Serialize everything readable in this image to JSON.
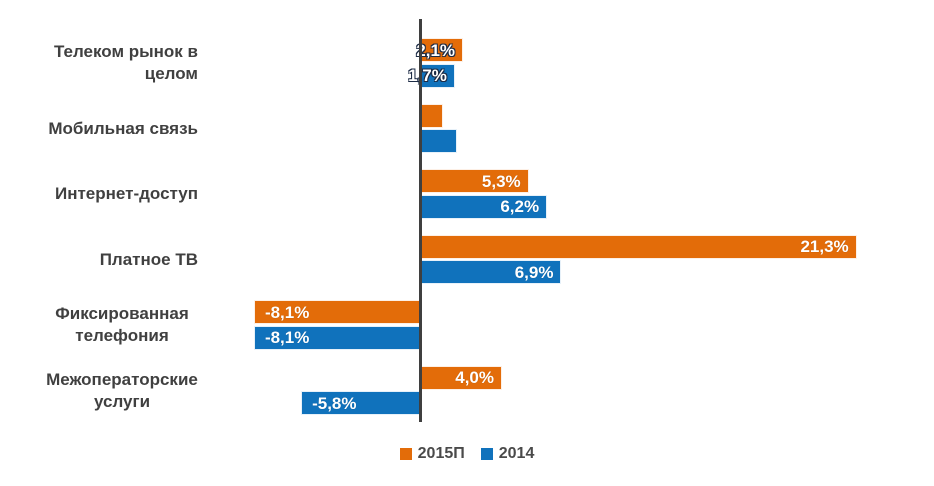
{
  "chart_data": {
    "type": "bar",
    "orientation": "horizontal",
    "title": "",
    "categories": [
      "Телеком рынок в целом",
      "Мобильная связь",
      "Интернет-доступ",
      "Платное ТВ",
      "Фиксированная\nтелефония",
      "Межоператорские\nуслуги"
    ],
    "series": [
      {
        "name": "2015П",
        "color": "#E36C09",
        "values": [
          2.1,
          1.1,
          5.3,
          21.3,
          -8.1,
          4.0
        ],
        "labels": [
          "2,1%",
          "",
          "5,3%",
          "21,3%",
          "-8,1%",
          "4,0%"
        ]
      },
      {
        "name": "2014",
        "color": "#1072BC",
        "values": [
          1.7,
          1.8,
          6.2,
          6.9,
          -8.1,
          -5.8
        ],
        "labels": [
          "1,7%",
          "",
          "6,2%",
          "6,9%",
          "-8,1%",
          "-5,8%"
        ]
      }
    ],
    "value_suffix": "%",
    "xlim": [
      -8.5,
      25.1
    ],
    "grid": false,
    "legend_position": "bottom-center",
    "colors": {
      "axis_line": "#3F3F3F",
      "category_label": "#404040",
      "data_label": "#FFFFFF",
      "legend_text": "#4A4A4A",
      "background": "#FFFFFF"
    }
  }
}
